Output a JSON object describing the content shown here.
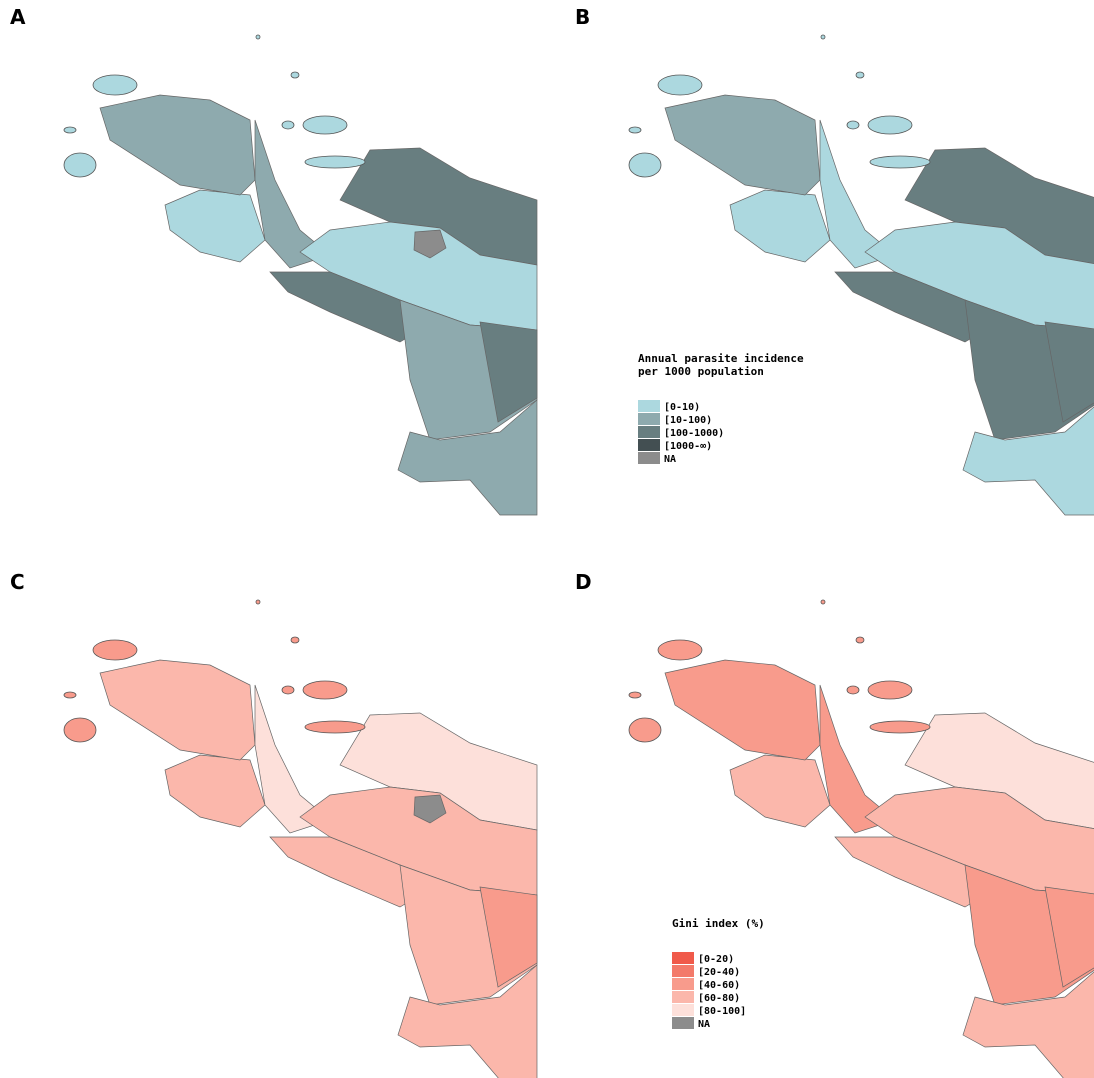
{
  "panels": [
    {
      "label": "A"
    },
    {
      "label": "B"
    },
    {
      "label": "C"
    },
    {
      "label": "D"
    }
  ],
  "legends": [
    {
      "panel": 1,
      "title_lines": [
        "Annual parasite incidence",
        "per 1000 population"
      ],
      "items": [
        {
          "label": "[0-10)",
          "color": "#acd8df"
        },
        {
          "label": "[10-100)",
          "color": "#8eaaae"
        },
        {
          "label": "[100-1000)",
          "color": "#687e80"
        },
        {
          "label": "[1000-∞)",
          "color": "#434f52"
        },
        {
          "label": "NA",
          "color": "#8c8c8c"
        }
      ]
    },
    {
      "panel": 3,
      "title_lines": [
        "Gini index (%)"
      ],
      "items": [
        {
          "label": "[0-20)",
          "color": "#f05a4a"
        },
        {
          "label": "[20-40)",
          "color": "#f37a6a"
        },
        {
          "label": "[40-60)",
          "color": "#f89b8c"
        },
        {
          "label": "[60-80)",
          "color": "#fbb7ab"
        },
        {
          "label": "[80-100]",
          "color": "#fde0da"
        },
        {
          "label": "NA",
          "color": "#8c8c8c"
        }
      ]
    }
  ]
}
